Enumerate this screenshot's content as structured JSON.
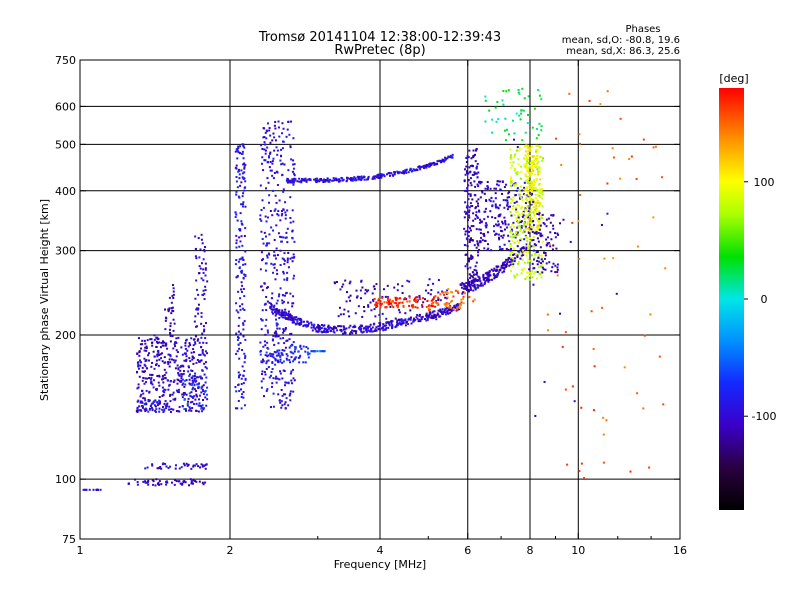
{
  "chart_data": {
    "type": "scatter",
    "title": "Tromsø 20141104 12:38:00-12:39:43",
    "subtitle": "RwPretec (8p)",
    "xlabel": "Frequency [MHz]",
    "ylabel": "Stationary phase Virtual Height [km]",
    "x_scale": "log",
    "y_scale": "log",
    "xlim": [
      1,
      16
    ],
    "ylim": [
      75,
      750
    ],
    "x_ticks": [
      1,
      2,
      4,
      6,
      8,
      10,
      16
    ],
    "x_tick_labels": [
      "1",
      "2",
      "4",
      "6",
      "8",
      "10",
      "16"
    ],
    "x_gridlines": [
      2,
      4,
      6,
      8,
      10
    ],
    "y_ticks": [
      75,
      100,
      200,
      300,
      400,
      500,
      600,
      750
    ],
    "y_tick_labels": [
      "75",
      "100",
      "200",
      "300",
      "400",
      "500",
      "600",
      "750"
    ],
    "y_gridlines": [
      100,
      200,
      300,
      400,
      500,
      600
    ],
    "grid": true,
    "stats": {
      "heading": "Phases",
      "line_o": "mean, sd,O: -80.8, 19.6",
      "line_x": "mean, sd,X: 86.3, 25.6"
    },
    "colorbar": {
      "title": "[deg]",
      "range": [
        -180,
        180
      ],
      "ticks": [
        100,
        0,
        -100
      ],
      "tick_labels": [
        "100",
        "0",
        "-100"
      ]
    },
    "traces": [
      {
        "x": [
          1.0,
          1.1
        ],
        "y": [
          95,
          95
        ],
        "phase": -95,
        "n": 12
      },
      {
        "x": [
          1.25,
          1.8
        ],
        "y": [
          97,
          100
        ],
        "phase": -108,
        "n": 55
      },
      {
        "x": [
          1.35,
          1.8
        ],
        "y": [
          105,
          108
        ],
        "phase": -100,
        "n": 40
      },
      {
        "x": [
          1.3,
          1.8
        ],
        "y": [
          138,
          200
        ],
        "phase": -105,
        "n": 420
      },
      {
        "x": [
          1.6,
          1.8
        ],
        "y": [
          140,
          165
        ],
        "phase": -70,
        "n": 40
      },
      {
        "x": [
          1.3,
          1.5
        ],
        "y": [
          138,
          146
        ],
        "phase": -85,
        "n": 40
      },
      {
        "x": [
          1.48,
          1.55
        ],
        "y": [
          200,
          255
        ],
        "phase": -110,
        "n": 30
      },
      {
        "x": [
          1.7,
          1.8
        ],
        "y": [
          200,
          325
        ],
        "phase": -100,
        "n": 60
      },
      {
        "x": [
          2.05,
          2.15
        ],
        "y": [
          140,
          510
        ],
        "phase": -90,
        "n": 180
      },
      {
        "x": [
          2.3,
          2.7
        ],
        "y": [
          140,
          560
        ],
        "phase": -95,
        "n": 420
      },
      {
        "x": [
          2.3,
          2.9
        ],
        "y": [
          175,
          190
        ],
        "phase": -75,
        "n": 60
      },
      {
        "x": [
          2.9,
          3.1
        ],
        "y": [
          185,
          185
        ],
        "phase": -60,
        "n": 15
      },
      {
        "x": [
          2.6,
          5.6
        ],
        "y": [
          420,
          472
        ],
        "phase": -95,
        "n": 260,
        "curve": "upper"
      },
      {
        "x": [
          2.4,
          5.8
        ],
        "y": [
          205,
          230
        ],
        "phase": -100,
        "n": 420,
        "curve": "lower"
      },
      {
        "x": [
          3.2,
          5.5
        ],
        "y": [
          215,
          262
        ],
        "phase": -110,
        "n": 120
      },
      {
        "x": [
          3.9,
          5.2
        ],
        "y": [
          228,
          240
        ],
        "phase": 170,
        "n": 90
      },
      {
        "x": [
          5.0,
          6.2
        ],
        "y": [
          225,
          250
        ],
        "phase": 150,
        "n": 60
      },
      {
        "x": [
          5.8,
          7.8
        ],
        "y": [
          250,
          300
        ],
        "phase": -110,
        "n": 200,
        "curve": "hook"
      },
      {
        "x": [
          5.9,
          6.3
        ],
        "y": [
          260,
          490
        ],
        "phase": -110,
        "n": 160
      },
      {
        "x": [
          6.3,
          8.1
        ],
        "y": [
          300,
          420
        ],
        "phase": -105,
        "n": 220
      },
      {
        "x": [
          7.3,
          8.5
        ],
        "y": [
          260,
          500
        ],
        "phase": 80,
        "n": 260
      },
      {
        "x": [
          7.8,
          8.4
        ],
        "y": [
          330,
          500
        ],
        "phase": 100,
        "n": 160
      },
      {
        "x": [
          8.1,
          9.2
        ],
        "y": [
          270,
          360
        ],
        "phase": -110,
        "n": 90
      },
      {
        "x": [
          6.5,
          8.5
        ],
        "y": [
          510,
          660
        ],
        "phase": 20,
        "n": 50
      },
      {
        "x": [
          8.5,
          15
        ],
        "y": [
          100,
          650
        ],
        "phase": 150,
        "n": 60
      },
      {
        "x": [
          7,
          13
        ],
        "y": [
          130,
          560
        ],
        "phase": -100,
        "n": 15
      }
    ]
  }
}
